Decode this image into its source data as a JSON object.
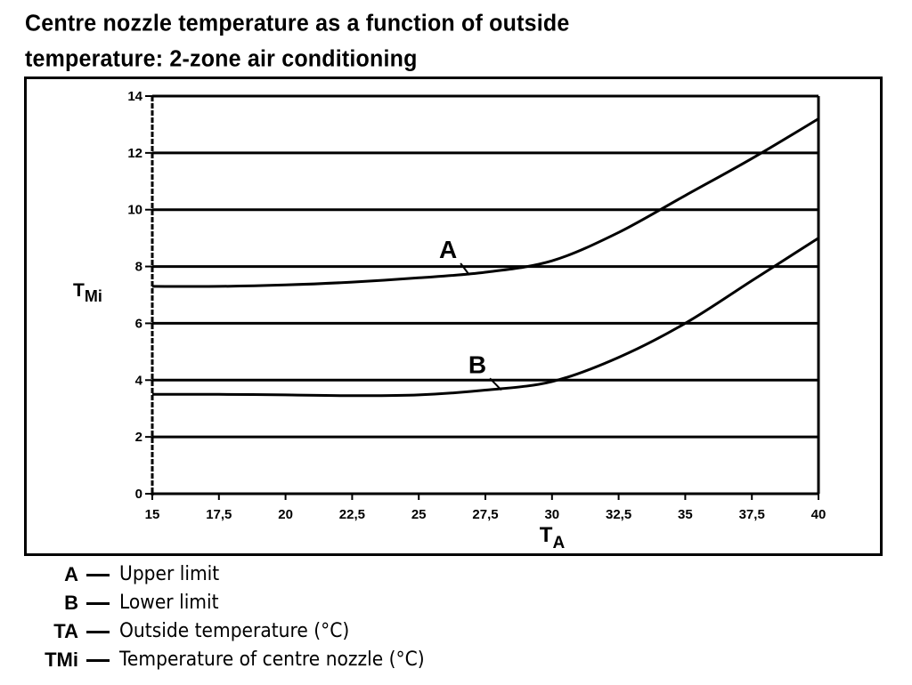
{
  "chart_data": {
    "type": "line",
    "title_lines": [
      "Centre nozzle temperature as a function of outside",
      "temperature: 2-zone air conditioning"
    ],
    "xlabel": "T",
    "xlabel_sub": "A",
    "ylabel": "T",
    "ylabel_sub": "Mi",
    "xlim": [
      15,
      40
    ],
    "ylim": [
      0,
      14
    ],
    "x_ticks": [
      15,
      17.5,
      20,
      22.5,
      25,
      27.5,
      30,
      32.5,
      35,
      37.5,
      40
    ],
    "x_tick_labels": [
      "15",
      "17,5",
      "20",
      "22,5",
      "25",
      "27,5",
      "30",
      "32,5",
      "35",
      "37,5",
      "40"
    ],
    "y_ticks": [
      0,
      2,
      4,
      6,
      8,
      10,
      12,
      14
    ],
    "y_tick_labels": [
      "0",
      "2",
      "4",
      "6",
      "8",
      "10",
      "12",
      "14"
    ],
    "grid": "horizontal",
    "series": [
      {
        "name": "A",
        "points": [
          [
            15,
            7.3
          ],
          [
            17.5,
            7.3
          ],
          [
            20,
            7.35
          ],
          [
            22.5,
            7.45
          ],
          [
            25,
            7.6
          ],
          [
            27.5,
            7.8
          ],
          [
            30,
            8.2
          ],
          [
            32.5,
            9.2
          ],
          [
            35,
            10.5
          ],
          [
            37.5,
            11.8
          ],
          [
            40,
            13.2
          ]
        ],
        "label_at": [
          26.1,
          8.3
        ],
        "label_pointer_to": [
          26.9,
          7.7
        ]
      },
      {
        "name": "B",
        "points": [
          [
            15,
            3.5
          ],
          [
            17.5,
            3.5
          ],
          [
            20,
            3.48
          ],
          [
            22.5,
            3.45
          ],
          [
            25,
            3.48
          ],
          [
            27.5,
            3.65
          ],
          [
            30,
            3.95
          ],
          [
            32.5,
            4.8
          ],
          [
            35,
            6.0
          ],
          [
            37.5,
            7.5
          ],
          [
            40,
            9.0
          ]
        ],
        "label_at": [
          27.2,
          4.25
        ],
        "label_pointer_to": [
          28.1,
          3.65
        ]
      }
    ]
  },
  "legend": [
    {
      "key": "A",
      "desc": "Upper limit"
    },
    {
      "key": "B",
      "desc": "Lower limit"
    },
    {
      "key": "TA",
      "desc": "Outside temperature (°C)"
    },
    {
      "key": "TMi",
      "desc": "Temperature of centre nozzle (°C)"
    }
  ]
}
